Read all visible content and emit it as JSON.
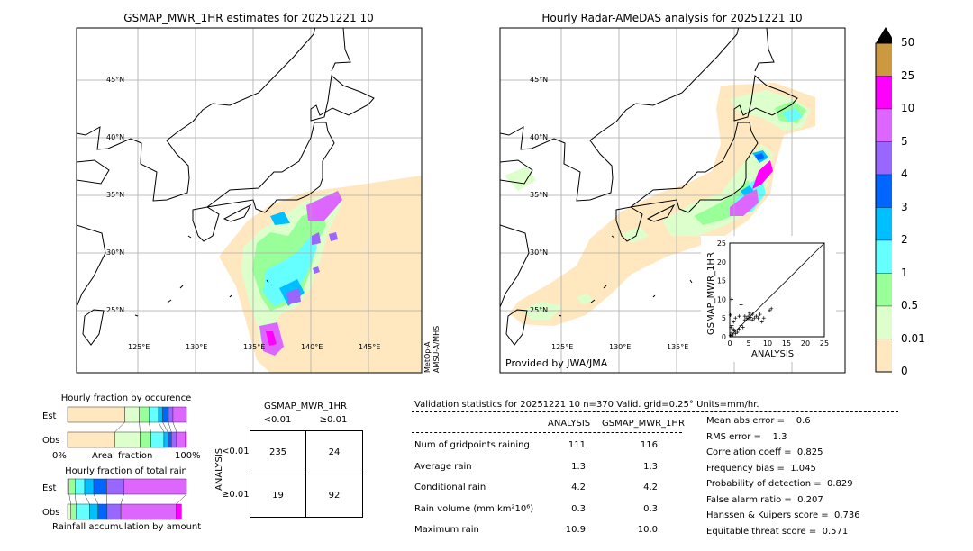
{
  "left_map": {
    "title": "GSMAP_MWR_1HR estimates for 20251221 10",
    "lat_labels": [
      "45°N",
      "40°N",
      "35°N",
      "30°N",
      "25°N"
    ],
    "lon_labels": [
      "125°E",
      "130°E",
      "135°E",
      "140°E",
      "145°E"
    ],
    "sensor_label_1": "MetOp-A",
    "sensor_label_2": "AMSU-A/MHS"
  },
  "right_map": {
    "title": "Hourly Radar-AMeDAS analysis for 20251221 10",
    "lat_labels": [
      "45°N",
      "40°N",
      "35°N",
      "30°N",
      "25°N"
    ],
    "lon_labels": [
      "125°E",
      "130°E",
      "135°E"
    ],
    "credit": "Provided by JWA/JMA"
  },
  "scatter": {
    "xlabel": "ANALYSIS",
    "ylabel": "GSMAP_MWR_1HR",
    "ticks": [
      "0",
      "5",
      "10",
      "15",
      "20",
      "25"
    ],
    "range": [
      0,
      25
    ],
    "points": [
      [
        0.2,
        0.3
      ],
      [
        0.5,
        1
      ],
      [
        0.8,
        0.5
      ],
      [
        1,
        2
      ],
      [
        1.2,
        1.5
      ],
      [
        0.3,
        2.5
      ],
      [
        1.5,
        0.8
      ],
      [
        2,
        1.2
      ],
      [
        0.6,
        3
      ],
      [
        1,
        4
      ],
      [
        2.5,
        2
      ],
      [
        3,
        3
      ],
      [
        3.5,
        2.5
      ],
      [
        4,
        4.5
      ],
      [
        4.5,
        5
      ],
      [
        5,
        5.5
      ],
      [
        5,
        4.8
      ],
      [
        5.5,
        5.2
      ],
      [
        6,
        6
      ],
      [
        6.5,
        5
      ],
      [
        7,
        5.5
      ],
      [
        7.5,
        5
      ],
      [
        8,
        6
      ],
      [
        8.5,
        4
      ],
      [
        10.5,
        7
      ],
      [
        11,
        7.5
      ],
      [
        3,
        8.5
      ],
      [
        0.5,
        10
      ],
      [
        2.5,
        5.5
      ],
      [
        1.5,
        5
      ],
      [
        0.2,
        5.8
      ],
      [
        4,
        5.5
      ],
      [
        5.2,
        6.3
      ],
      [
        6,
        4.5
      ],
      [
        9,
        5
      ]
    ]
  },
  "colorbar": {
    "labels": [
      "50",
      "25",
      "10",
      "5",
      "4",
      "3",
      "2",
      "1",
      "0.5",
      "0.01",
      "0"
    ],
    "colors": [
      "#cc9940",
      "#ff00ff",
      "#dd66ff",
      "#9966ff",
      "#0066ff",
      "#00bfff",
      "#66ffff",
      "#99ff99",
      "#ddffcc",
      "#ffe8c0"
    ],
    "extend_color": "#000000"
  },
  "occurrence": {
    "title": "Hourly fraction by occurence",
    "est_label": "Est",
    "obs_label": "Obs",
    "axis_left": "0%",
    "axis_mid": "Areal fraction",
    "axis_right": "100%",
    "est_cum": [
      48.1,
      60.3,
      68.4,
      76.5,
      80,
      84.8,
      88.6,
      100
    ],
    "obs_cum": [
      39.7,
      61,
      70.1,
      81,
      84.3,
      87.3,
      91.6,
      99.2,
      100
    ],
    "colors": [
      "#ffe8c0",
      "#ddffcc",
      "#99ff99",
      "#66ffff",
      "#00bfff",
      "#0066ff",
      "#9966ff",
      "#dd66ff",
      "#ff00ff"
    ]
  },
  "total_rain": {
    "title": "Hourly fraction of total rain",
    "est_label": "Est",
    "obs_label": "Obs",
    "footer": "Rainfall accumulation by amount",
    "est_cum": [
      1.3,
      6.3,
      14.4,
      22,
      32.9,
      47.3,
      100
    ],
    "obs_cum": [
      2.8,
      7.1,
      18.5,
      25.6,
      33.2,
      44.8,
      91.4,
      95.7
    ],
    "colors": [
      "#ddffcc",
      "#99ff99",
      "#66ffff",
      "#00bfff",
      "#0066ff",
      "#9966ff",
      "#dd66ff",
      "#ff00ff"
    ]
  },
  "contingency": {
    "col_title": "GSMAP_MWR_1HR",
    "col_labels": [
      "<0.01",
      "≥0.01"
    ],
    "row_title": "ANALYSIS",
    "row_labels": [
      "<0.01",
      "≥0.01"
    ],
    "cells": [
      [
        "235",
        "24"
      ],
      [
        "19",
        "92"
      ]
    ]
  },
  "validation": {
    "header": "Validation statistics for 20251221 10  n=370 Valid. grid=0.25° Units=mm/hr.",
    "col_analysis": "ANALYSIS",
    "col_gsmap": "GSMAP_MWR_1HR",
    "rows": [
      {
        "label": "Num of gridpoints raining",
        "analysis": "111",
        "gsmap": "116"
      },
      {
        "label": "Average rain",
        "analysis": "1.3",
        "gsmap": "1.3"
      },
      {
        "label": "Conditional rain",
        "analysis": "4.2",
        "gsmap": "4.2"
      },
      {
        "label": "Rain volume (mm km²10⁶)",
        "analysis": "0.3",
        "gsmap": "0.3"
      },
      {
        "label": "Maximum rain",
        "analysis": "10.9",
        "gsmap": "10.0"
      }
    ],
    "scores": [
      "Mean abs error =    0.6",
      "RMS error =    1.3",
      "Correlation coeff =  0.825",
      "Frequency bias =  1.045",
      "Probability of detection =  0.829",
      "False alarm ratio =  0.207",
      "Hanssen & Kuipers score =  0.736",
      "Equitable threat score =  0.571"
    ]
  }
}
